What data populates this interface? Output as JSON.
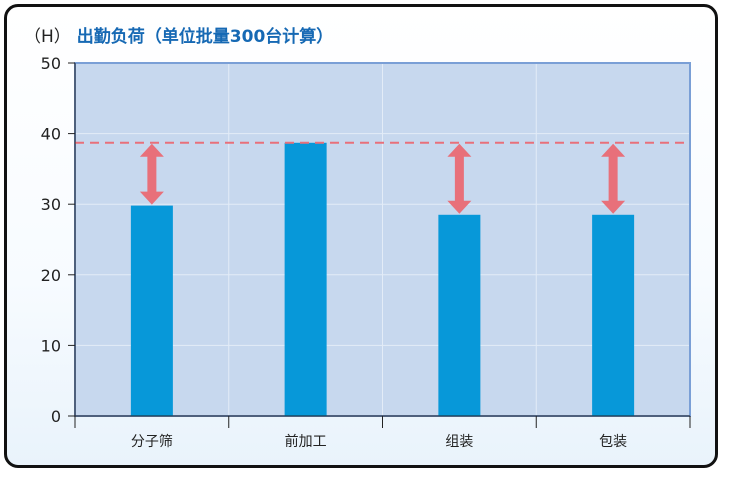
{
  "chart_data": {
    "type": "bar",
    "unit_label": "（H）",
    "title": "出勤负荷（单位批量300台计算）",
    "categories": [
      "分子筛",
      "前加工",
      "组装",
      "包装"
    ],
    "values": [
      29.8,
      38.7,
      28.5,
      28.5
    ],
    "ylim": [
      0,
      50
    ],
    "yticks": [
      0,
      10,
      20,
      30,
      40,
      50
    ],
    "reference_line": 38.7,
    "gap_arrows": [
      true,
      false,
      true,
      true
    ],
    "grid": true,
    "colors": {
      "bar": "#0798d9",
      "plot_bg": "#c7d8ee",
      "plot_border": "#7a9fd6",
      "grid": "#e3ecf7",
      "reference_line": "#e8707a",
      "arrow": "#e8707a",
      "axis": "#222222"
    }
  }
}
